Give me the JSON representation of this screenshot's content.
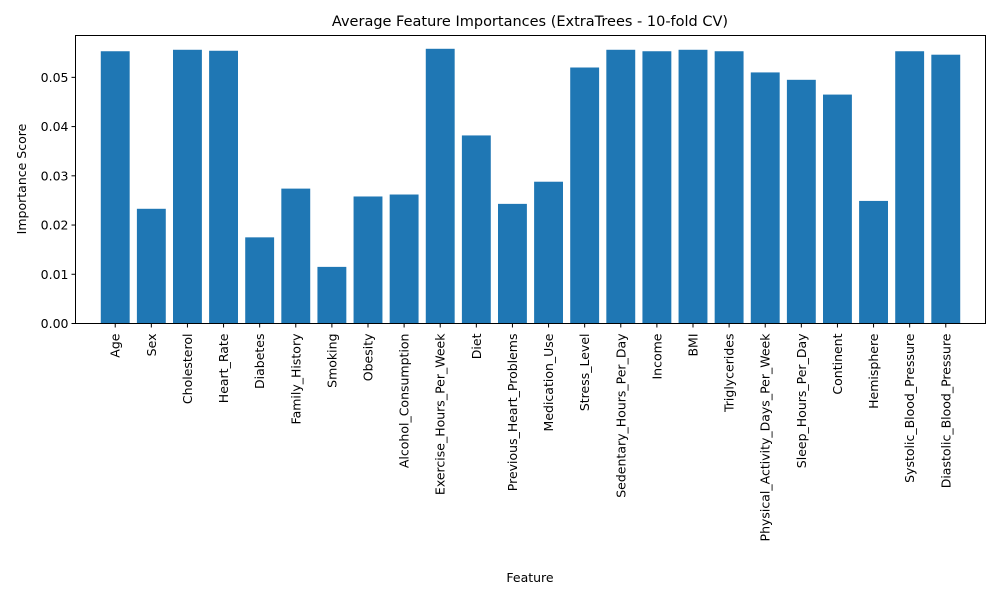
{
  "chart_data": {
    "type": "bar",
    "title": "Average Feature Importances (ExtraTrees - 10-fold CV)",
    "xlabel": "Feature",
    "ylabel": "Importance Score",
    "ylim": [
      0,
      0.0585
    ],
    "yticks": [
      0.0,
      0.01,
      0.02,
      0.03,
      0.04,
      0.05
    ],
    "ytick_labels": [
      "0.00",
      "0.01",
      "0.02",
      "0.03",
      "0.04",
      "0.05"
    ],
    "grid": false,
    "legend": "none",
    "color": "#1f77b4",
    "categories": [
      "Age",
      "Sex",
      "Cholesterol",
      "Heart_Rate",
      "Diabetes",
      "Family_History",
      "Smoking",
      "Obesity",
      "Alcohol_Consumption",
      "Exercise_Hours_Per_Week",
      "Diet",
      "Previous_Heart_Problems",
      "Medication_Use",
      "Stress_Level",
      "Sedentary_Hours_Per_Day",
      "Income",
      "BMI",
      "Triglycerides",
      "Physical_Activity_Days_Per_Week",
      "Sleep_Hours_Per_Day",
      "Continent",
      "Hemisphere",
      "Systolic_Blood_Pressure",
      "Diastolic_Blood_Pressure"
    ],
    "values": [
      0.0553,
      0.0233,
      0.0556,
      0.0554,
      0.0175,
      0.0274,
      0.0115,
      0.0258,
      0.0262,
      0.0558,
      0.0382,
      0.0243,
      0.0288,
      0.052,
      0.0556,
      0.0553,
      0.0556,
      0.0553,
      0.051,
      0.0495,
      0.0465,
      0.0249,
      0.0553,
      0.0546
    ]
  }
}
